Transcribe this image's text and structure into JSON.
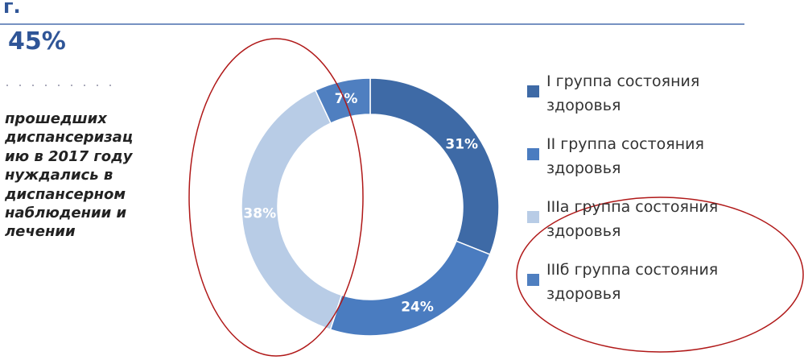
{
  "header": {
    "year_fragment": "г.",
    "stat": "45%",
    "caption": "прошедших диспансеризацию в 2017 году нуждались в диспансерном наблюдении и лечении"
  },
  "chart_data": {
    "type": "donut",
    "categories": [
      "I группа состояния здоровья",
      "II группа состояния здоровья",
      "IIIа группа состояния здоровья",
      "IIIб группа состояния здоровья"
    ],
    "values": [
      31,
      24,
      38,
      7
    ],
    "value_labels": [
      "31%",
      "24%",
      "38%",
      "7%"
    ],
    "colors": [
      "#3e6aa6",
      "#4a7cc0",
      "#b8cce6",
      "#4f7fc0"
    ]
  }
}
